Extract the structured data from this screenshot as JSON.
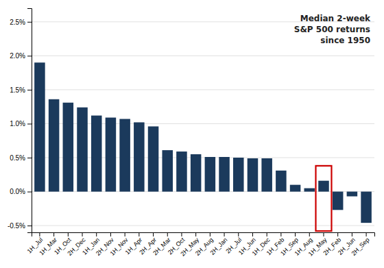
{
  "chart_data": {
    "type": "bar",
    "categories": [
      "1H_Jul",
      "1H_Mar",
      "1H_Oct",
      "2H_Dec",
      "1H_Jan",
      "2H_Nov",
      "1H_Nov",
      "1H_Apr",
      "2H_Apr",
      "2H_Mar",
      "2H_Oct",
      "2H_May",
      "2H_Aug",
      "2H_Jan",
      "2H_Jul",
      "1H_Jun",
      "1H_Dec",
      "1H_Feb",
      "1H_Sep",
      "1H_Aug",
      "1H_May",
      "2H_Feb",
      "2H_Jun",
      "2H_Sep"
    ],
    "values": [
      0.019,
      0.0136,
      0.0131,
      0.0124,
      0.0112,
      0.0109,
      0.0107,
      0.0102,
      0.0096,
      0.0061,
      0.0059,
      0.0055,
      0.0051,
      0.0051,
      0.005,
      0.0049,
      0.0049,
      0.0031,
      0.001,
      0.0005,
      0.0016,
      -0.0027,
      -0.0007,
      -0.0046
    ],
    "color": "#1b3a5c",
    "ylim": [
      -0.006,
      0.027
    ],
    "yticks": [
      {
        "value": -0.005,
        "label": "-0.5%"
      },
      {
        "value": 0.0,
        "label": "0.0%"
      },
      {
        "value": 0.005,
        "label": "0.5%"
      },
      {
        "value": 0.01,
        "label": "1.0%"
      },
      {
        "value": 0.015,
        "label": "1.5%"
      },
      {
        "value": 0.02,
        "label": "2.0%"
      },
      {
        "value": 0.025,
        "label": "2.5%"
      }
    ],
    "grid": true,
    "annotation": "Median 2-week\nS&P 500 returns\nsince 1950",
    "highlight": {
      "index": 20,
      "bottom": -0.0058,
      "top": 0.0038,
      "color": "#cc0000"
    }
  }
}
